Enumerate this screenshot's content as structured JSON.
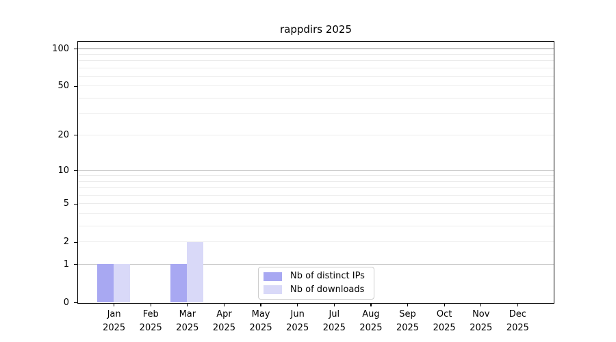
{
  "chart_data": {
    "type": "bar",
    "title": "rappdirs 2025",
    "year_label": "2025",
    "categories": [
      "Jan",
      "Feb",
      "Mar",
      "Apr",
      "May",
      "Jun",
      "Jul",
      "Aug",
      "Sep",
      "Oct",
      "Nov",
      "Dec"
    ],
    "series": [
      {
        "name": "Nb of distinct IPs",
        "color": "#a8a8f2",
        "values": [
          1,
          0,
          1,
          0,
          0,
          0,
          0,
          0,
          0,
          0,
          0,
          0
        ]
      },
      {
        "name": "Nb of downloads",
        "color": "#d9d9f8",
        "values": [
          1,
          0,
          2,
          0,
          0,
          0,
          0,
          0,
          0,
          0,
          0,
          0
        ]
      }
    ],
    "yscale": "log1p",
    "ylim": [
      0,
      113.4
    ],
    "yticks": [
      "0",
      "1",
      "2",
      "5",
      "10",
      "20",
      "50",
      "100"
    ],
    "grid": {
      "major_values": [
        1,
        10,
        100
      ],
      "minor_values": [
        2,
        3,
        4,
        5,
        6,
        7,
        8,
        9,
        20,
        30,
        40,
        50,
        60,
        70,
        80,
        90
      ],
      "major_color": "#c8c8c8",
      "minor_color": "#ebebeb"
    },
    "legend_position": "lower center",
    "axis_color": "#000000",
    "background_color": "#ffffff"
  }
}
